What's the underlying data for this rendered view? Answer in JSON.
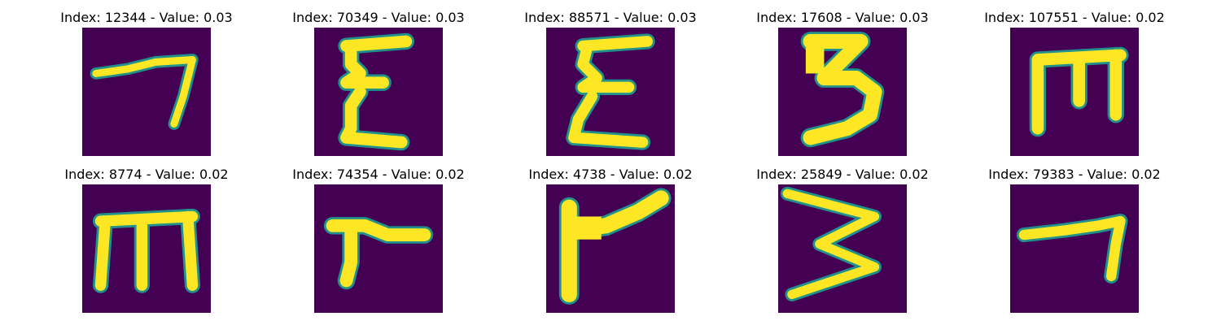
{
  "figure": {
    "panels": [
      {
        "title": "Index: 12344 - Value: 0.03",
        "glyph": "seven-like"
      },
      {
        "title": "Index: 70349 - Value: 0.03",
        "glyph": "epsilon-like"
      },
      {
        "title": "Index: 88571 - Value: 0.03",
        "glyph": "epsilon-like"
      },
      {
        "title": "Index: 17608 - Value: 0.03",
        "glyph": "three"
      },
      {
        "title": "Index: 107551 - Value: 0.02",
        "glyph": "m-like"
      },
      {
        "title": "Index: 8774 - Value: 0.02",
        "glyph": "m-like"
      },
      {
        "title": "Index: 74354 - Value: 0.02",
        "glyph": "r-like"
      },
      {
        "title": "Index: 4738 - Value: 0.02",
        "glyph": "r-like"
      },
      {
        "title": "Index: 25849 - Value: 0.02",
        "glyph": "three-like"
      },
      {
        "title": "Index: 79383 - Value: 0.02",
        "glyph": "seven-like"
      }
    ],
    "colors": {
      "background": "#440154",
      "stroke": "#fde725",
      "edge": "#21918c"
    }
  }
}
